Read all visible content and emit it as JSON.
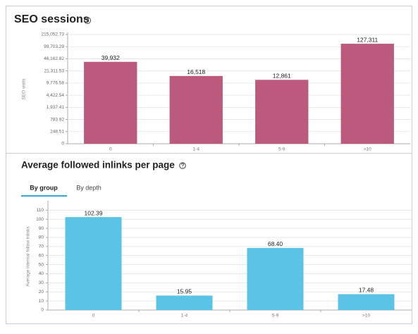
{
  "chart_data": [
    {
      "type": "bar",
      "title": "SEO sessions",
      "y_label": "SEO visits",
      "categories": [
        "0",
        "1-4",
        "5-9",
        ">10"
      ],
      "values": [
        39932,
        16518,
        12861,
        127311
      ],
      "value_labels": [
        "39,932",
        "16,518",
        "12,861",
        "127,311"
      ],
      "color": "#bc5a7e",
      "ylim": [
        0,
        215052.73
      ],
      "yticks": [
        0,
        248.51,
        783.92,
        {
          "value": 1937.41,
          "label": "1,937.41"
        },
        {
          "value": 4422.54,
          "label": "4,422.54"
        },
        {
          "value": 9776.58,
          "label": "9,776.58"
        },
        {
          "value": 21311.53,
          "label": "21,311.53"
        },
        {
          "value": 46162.82,
          "label": "46,162.82"
        },
        {
          "value": 99703.29,
          "label": "99,703.29"
        },
        {
          "value": 215052.73,
          "label": "215,052.73"
        }
      ],
      "grid": true
    },
    {
      "type": "bar",
      "title": "Average followed inlinks per page",
      "y_label": "Average internal follow inlinks",
      "categories": [
        "0",
        "1-4",
        "5-9",
        ">10"
      ],
      "values": [
        102.39,
        15.95,
        68.4,
        17.48
      ],
      "value_labels": [
        "102.39",
        "15.95",
        "68.40",
        "17.48"
      ],
      "color": "#5bc4e6",
      "ylim": [
        0,
        118
      ],
      "yticks": [
        0,
        10,
        20,
        30,
        40,
        50,
        60,
        70,
        80,
        90,
        100,
        110
      ],
      "grid": true
    }
  ],
  "tabs": [
    "By group",
    "By depth"
  ]
}
